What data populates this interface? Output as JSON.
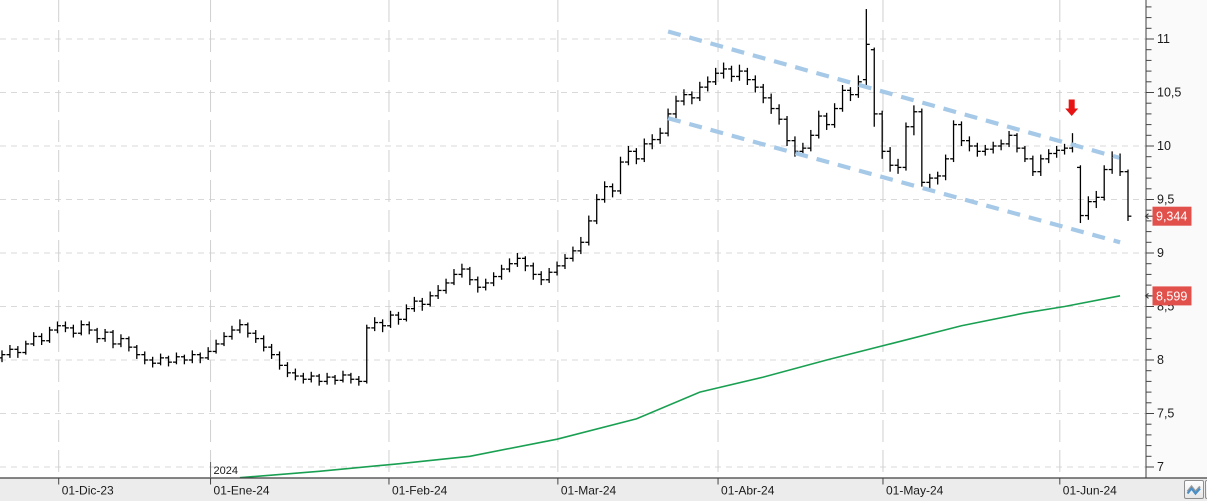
{
  "chart_data": {
    "type": "ohlc",
    "title": "",
    "xlabel": "",
    "ylabel": "",
    "ylim": [
      7,
      11
    ],
    "grid": true,
    "y_minor_step": 0.1,
    "y_ticks": [
      {
        "v": 7,
        "label": "7"
      },
      {
        "v": 7.5,
        "label": "7,5"
      },
      {
        "v": 8,
        "label": "8"
      },
      {
        "v": 8.5,
        "label": "8,5"
      },
      {
        "v": 9,
        "label": "9"
      },
      {
        "v": 9.5,
        "label": "9,5"
      },
      {
        "v": 10,
        "label": "10"
      },
      {
        "v": 10.5,
        "label": "10,5"
      },
      {
        "v": 11,
        "label": "11"
      }
    ],
    "x_ticks": [
      {
        "pos": 7.15,
        "label": "01-Dic-23"
      },
      {
        "pos": 26.3,
        "label": "01-Ene-24"
      },
      {
        "pos": 48.8,
        "label": "01-Feb-24"
      },
      {
        "pos": 70.1,
        "label": "01-Mar-24"
      },
      {
        "pos": 90.3,
        "label": "01-Abr-24"
      },
      {
        "pos": 111.1,
        "label": "01-May-24"
      },
      {
        "pos": 133.4,
        "label": "01-Jun-24"
      }
    ],
    "year_marker": {
      "pos": 26.3,
      "label": "2024"
    },
    "bars": [
      [
        8.02,
        8.09,
        7.98,
        8.05
      ],
      [
        8.05,
        8.14,
        8.02,
        8.1
      ],
      [
        8.1,
        8.13,
        8.02,
        8.07
      ],
      [
        8.07,
        8.18,
        8.05,
        8.15
      ],
      [
        8.15,
        8.26,
        8.13,
        8.22
      ],
      [
        8.22,
        8.25,
        8.14,
        8.18
      ],
      [
        8.18,
        8.31,
        8.16,
        8.28
      ],
      [
        8.28,
        8.36,
        8.25,
        8.32
      ],
      [
        8.32,
        8.36,
        8.26,
        8.3
      ],
      [
        8.3,
        8.33,
        8.21,
        8.25
      ],
      [
        8.25,
        8.37,
        8.23,
        8.33
      ],
      [
        8.33,
        8.36,
        8.24,
        8.28
      ],
      [
        8.28,
        8.3,
        8.16,
        8.2
      ],
      [
        8.2,
        8.29,
        8.17,
        8.26
      ],
      [
        8.26,
        8.28,
        8.11,
        8.15
      ],
      [
        8.15,
        8.24,
        8.12,
        8.2
      ],
      [
        8.2,
        8.22,
        8.08,
        8.12
      ],
      [
        8.12,
        8.14,
        8.01,
        8.05
      ],
      [
        8.05,
        8.08,
        7.96,
        8.0
      ],
      [
        8.0,
        8.03,
        7.93,
        7.97
      ],
      [
        7.97,
        8.06,
        7.95,
        8.02
      ],
      [
        8.02,
        8.04,
        7.94,
        7.98
      ],
      [
        7.98,
        8.07,
        7.96,
        8.03
      ],
      [
        8.03,
        8.05,
        7.96,
        8.0
      ],
      [
        8.0,
        8.09,
        7.97,
        8.05
      ],
      [
        8.05,
        8.07,
        7.97,
        8.02
      ],
      [
        8.02,
        8.12,
        8.0,
        8.08
      ],
      [
        8.08,
        8.19,
        8.06,
        8.15
      ],
      [
        8.15,
        8.26,
        8.13,
        8.22
      ],
      [
        8.22,
        8.32,
        8.19,
        8.28
      ],
      [
        8.28,
        8.38,
        8.25,
        8.33
      ],
      [
        8.33,
        8.35,
        8.21,
        8.25
      ],
      [
        8.25,
        8.28,
        8.16,
        8.2
      ],
      [
        8.2,
        8.23,
        8.08,
        8.12
      ],
      [
        8.12,
        8.15,
        8.01,
        8.05
      ],
      [
        8.05,
        8.08,
        7.91,
        7.95
      ],
      [
        7.95,
        7.98,
        7.84,
        7.88
      ],
      [
        7.88,
        7.92,
        7.81,
        7.85
      ],
      [
        7.85,
        7.88,
        7.78,
        7.82
      ],
      [
        7.82,
        7.89,
        7.79,
        7.85
      ],
      [
        7.85,
        7.87,
        7.76,
        7.8
      ],
      [
        7.8,
        7.88,
        7.77,
        7.84
      ],
      [
        7.84,
        7.86,
        7.77,
        7.81
      ],
      [
        7.81,
        7.9,
        7.79,
        7.86
      ],
      [
        7.86,
        7.88,
        7.78,
        7.82
      ],
      [
        7.82,
        7.85,
        7.76,
        7.8
      ],
      [
        7.8,
        8.33,
        7.78,
        8.3
      ],
      [
        8.3,
        8.4,
        8.27,
        8.35
      ],
      [
        8.35,
        8.38,
        8.26,
        8.32
      ],
      [
        8.32,
        8.46,
        8.3,
        8.42
      ],
      [
        8.42,
        8.45,
        8.33,
        8.38
      ],
      [
        8.38,
        8.52,
        8.36,
        8.48
      ],
      [
        8.48,
        8.59,
        8.45,
        8.55
      ],
      [
        8.55,
        8.58,
        8.46,
        8.52
      ],
      [
        8.52,
        8.64,
        8.5,
        8.6
      ],
      [
        8.6,
        8.7,
        8.57,
        8.65
      ],
      [
        8.65,
        8.76,
        8.62,
        8.72
      ],
      [
        8.72,
        8.85,
        8.7,
        8.8
      ],
      [
        8.8,
        8.9,
        8.77,
        8.85
      ],
      [
        8.85,
        8.87,
        8.7,
        8.75
      ],
      [
        8.75,
        8.78,
        8.63,
        8.68
      ],
      [
        8.68,
        8.76,
        8.65,
        8.72
      ],
      [
        8.72,
        8.82,
        8.69,
        8.78
      ],
      [
        8.78,
        8.89,
        8.75,
        8.85
      ],
      [
        8.85,
        8.95,
        8.82,
        8.9
      ],
      [
        8.9,
        9.0,
        8.87,
        8.95
      ],
      [
        8.95,
        8.97,
        8.83,
        8.88
      ],
      [
        8.88,
        8.91,
        8.75,
        8.8
      ],
      [
        8.8,
        8.83,
        8.7,
        8.75
      ],
      [
        8.75,
        8.86,
        8.72,
        8.82
      ],
      [
        8.82,
        8.92,
        8.79,
        8.88
      ],
      [
        8.88,
        8.99,
        8.85,
        8.95
      ],
      [
        8.95,
        9.06,
        8.92,
        9.02
      ],
      [
        9.02,
        9.15,
        8.99,
        9.1
      ],
      [
        9.1,
        9.35,
        9.07,
        9.3
      ],
      [
        9.3,
        9.55,
        9.27,
        9.5
      ],
      [
        9.5,
        9.67,
        9.47,
        9.62
      ],
      [
        9.62,
        9.65,
        9.52,
        9.58
      ],
      [
        9.58,
        9.9,
        9.55,
        9.85
      ],
      [
        9.85,
        10.0,
        9.82,
        9.95
      ],
      [
        9.95,
        9.98,
        9.83,
        9.88
      ],
      [
        9.88,
        10.07,
        9.85,
        10.02
      ],
      [
        10.02,
        10.11,
        9.97,
        10.06
      ],
      [
        10.06,
        10.17,
        10.02,
        10.12
      ],
      [
        10.12,
        10.35,
        10.09,
        10.3
      ],
      [
        10.3,
        10.47,
        10.26,
        10.42
      ],
      [
        10.42,
        10.53,
        10.38,
        10.48
      ],
      [
        10.48,
        10.51,
        10.39,
        10.45
      ],
      [
        10.45,
        10.6,
        10.42,
        10.55
      ],
      [
        10.55,
        10.65,
        10.51,
        10.6
      ],
      [
        10.6,
        10.73,
        10.57,
        10.68
      ],
      [
        10.68,
        10.78,
        10.63,
        10.72
      ],
      [
        10.72,
        10.75,
        10.6,
        10.65
      ],
      [
        10.65,
        10.76,
        10.61,
        10.7
      ],
      [
        10.7,
        10.73,
        10.57,
        10.62
      ],
      [
        10.62,
        10.66,
        10.5,
        10.55
      ],
      [
        10.55,
        10.58,
        10.4,
        10.45
      ],
      [
        10.45,
        10.49,
        10.3,
        10.35
      ],
      [
        10.35,
        10.39,
        10.2,
        10.25
      ],
      [
        10.25,
        10.28,
        10.0,
        10.05
      ],
      [
        10.05,
        10.09,
        9.9,
        9.95
      ],
      [
        9.95,
        10.03,
        9.91,
        9.98
      ],
      [
        9.98,
        10.15,
        9.95,
        10.1
      ],
      [
        10.1,
        10.33,
        10.07,
        10.28
      ],
      [
        10.28,
        10.31,
        10.15,
        10.2
      ],
      [
        10.2,
        10.4,
        10.17,
        10.35
      ],
      [
        10.35,
        10.57,
        10.32,
        10.52
      ],
      [
        10.52,
        10.55,
        10.42,
        10.48
      ],
      [
        10.48,
        10.66,
        10.45,
        10.6
      ],
      [
        10.62,
        11.28,
        10.55,
        10.95
      ],
      [
        10.9,
        10.92,
        10.18,
        10.3
      ],
      [
        10.3,
        10.33,
        9.88,
        9.95
      ],
      [
        9.95,
        9.99,
        9.76,
        9.82
      ],
      [
        9.82,
        9.88,
        9.74,
        9.8
      ],
      [
        9.8,
        10.22,
        9.77,
        10.18
      ],
      [
        10.18,
        10.38,
        10.1,
        10.32
      ],
      [
        10.32,
        10.35,
        9.62,
        9.66
      ],
      [
        9.66,
        9.74,
        9.6,
        9.7
      ],
      [
        9.7,
        9.76,
        9.64,
        9.72
      ],
      [
        9.72,
        9.92,
        9.68,
        9.88
      ],
      [
        9.88,
        10.24,
        9.85,
        10.2
      ],
      [
        10.2,
        10.23,
        10.0,
        10.05
      ],
      [
        10.05,
        10.09,
        9.95,
        10.0
      ],
      [
        10.0,
        10.03,
        9.9,
        9.95
      ],
      [
        9.95,
        10.01,
        9.91,
        9.97
      ],
      [
        9.97,
        10.04,
        9.93,
        10.0
      ],
      [
        10.0,
        10.06,
        9.96,
        10.02
      ],
      [
        10.02,
        10.14,
        9.99,
        10.1
      ],
      [
        10.1,
        10.12,
        9.94,
        9.98
      ],
      [
        9.98,
        10.0,
        9.85,
        9.88
      ],
      [
        9.88,
        9.91,
        9.72,
        9.76
      ],
      [
        9.76,
        9.92,
        9.72,
        9.88
      ],
      [
        9.88,
        9.97,
        9.84,
        9.93
      ],
      [
        9.93,
        10.0,
        9.89,
        9.96
      ],
      [
        9.96,
        10.02,
        9.92,
        9.98
      ],
      [
        9.98,
        10.12,
        9.94,
        10.02
      ],
      [
        9.8,
        9.82,
        9.28,
        9.35
      ],
      [
        9.35,
        9.53,
        9.31,
        9.48
      ],
      [
        9.48,
        9.58,
        9.42,
        9.52
      ],
      [
        9.52,
        9.82,
        9.49,
        9.78
      ],
      [
        9.78,
        9.95,
        9.74,
        9.9
      ],
      [
        9.9,
        9.93,
        9.72,
        9.76
      ],
      [
        9.76,
        9.78,
        9.3,
        9.344
      ]
    ],
    "series": [
      {
        "name": "moving-average",
        "color": "#1aa052",
        "points": [
          [
            30,
            6.9
          ],
          [
            40,
            6.96
          ],
          [
            50,
            7.03
          ],
          [
            59,
            7.1
          ],
          [
            70,
            7.26
          ],
          [
            80,
            7.45
          ],
          [
            88,
            7.7
          ],
          [
            96,
            7.84
          ],
          [
            104,
            8.0
          ],
          [
            112,
            8.15
          ],
          [
            121,
            8.32
          ],
          [
            129,
            8.44
          ],
          [
            134,
            8.5
          ],
          [
            141,
            8.6
          ]
        ]
      }
    ],
    "channel": {
      "color": "#a6c9e8",
      "upper": [
        [
          84,
          11.07
        ],
        [
          140.9,
          9.89
        ]
      ],
      "lower": [
        [
          84,
          10.26
        ],
        [
          141,
          9.1
        ]
      ]
    },
    "annotations": [
      {
        "kind": "down-arrow",
        "pos": 134.9,
        "tip_value": 10.28,
        "color": "#e61414"
      }
    ],
    "price_labels": [
      {
        "label": "9,344",
        "value": 9.344
      },
      {
        "label": "8,599",
        "value": 8.599
      }
    ],
    "legend_position": "none"
  },
  "colors": {
    "bar": "#000000",
    "grid_h": "#d9d9d9",
    "grid_v": "#d0d0d0",
    "axis_line": "#3f3f3f",
    "tick": "#444444",
    "text": "#1a1a1a",
    "right_margin_bg": "#fafafa",
    "bottom_strip_bg": "#ececec",
    "price_tag_bg": "#e2504c",
    "price_tag_text": "#ffffff"
  },
  "bottom_bar": {
    "buttons": [
      {
        "name": "indicator-style-button",
        "icon": "zigzag-icon"
      },
      {
        "name": "partial-hidden-button",
        "icon": ""
      }
    ]
  }
}
